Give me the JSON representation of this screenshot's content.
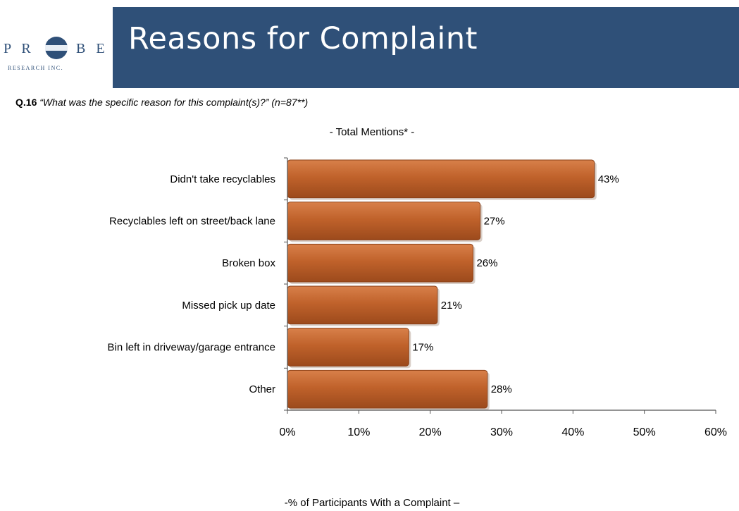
{
  "header": {
    "title": "Reasons for Complaint",
    "logo_text_left": "P R",
    "logo_text_right": "B E",
    "logo_subtext": "RESEARCH INC."
  },
  "question": {
    "number": "Q.16",
    "text": "“What was the specific reason for this complaint(s)?” (n=87**)"
  },
  "colors": {
    "title_bar": "#2f5078",
    "bar_fill": "#c0622b",
    "bar_stroke": "#8a3f16",
    "logo_blue": "#2f5078"
  },
  "chart_data": {
    "type": "bar",
    "orientation": "horizontal",
    "title": "- Total Mentions* -",
    "xlabel": "-% of Participants With a Complaint –",
    "ylabel": "",
    "categories": [
      "Didn't take recyclables",
      "Recyclables left on street/back lane",
      "Broken box",
      "Missed pick up date",
      "Bin left in driveway/garage entrance",
      "Other"
    ],
    "values": [
      43,
      27,
      26,
      21,
      17,
      28
    ],
    "data_labels": [
      "43%",
      "27%",
      "26%",
      "21%",
      "17%",
      "28%"
    ],
    "xlim": [
      0,
      60
    ],
    "xticks": [
      0,
      10,
      20,
      30,
      40,
      50,
      60
    ],
    "xtick_labels": [
      "0%",
      "10%",
      "20%",
      "30%",
      "40%",
      "50%",
      "60%"
    ],
    "grid": false,
    "legend": "none"
  }
}
